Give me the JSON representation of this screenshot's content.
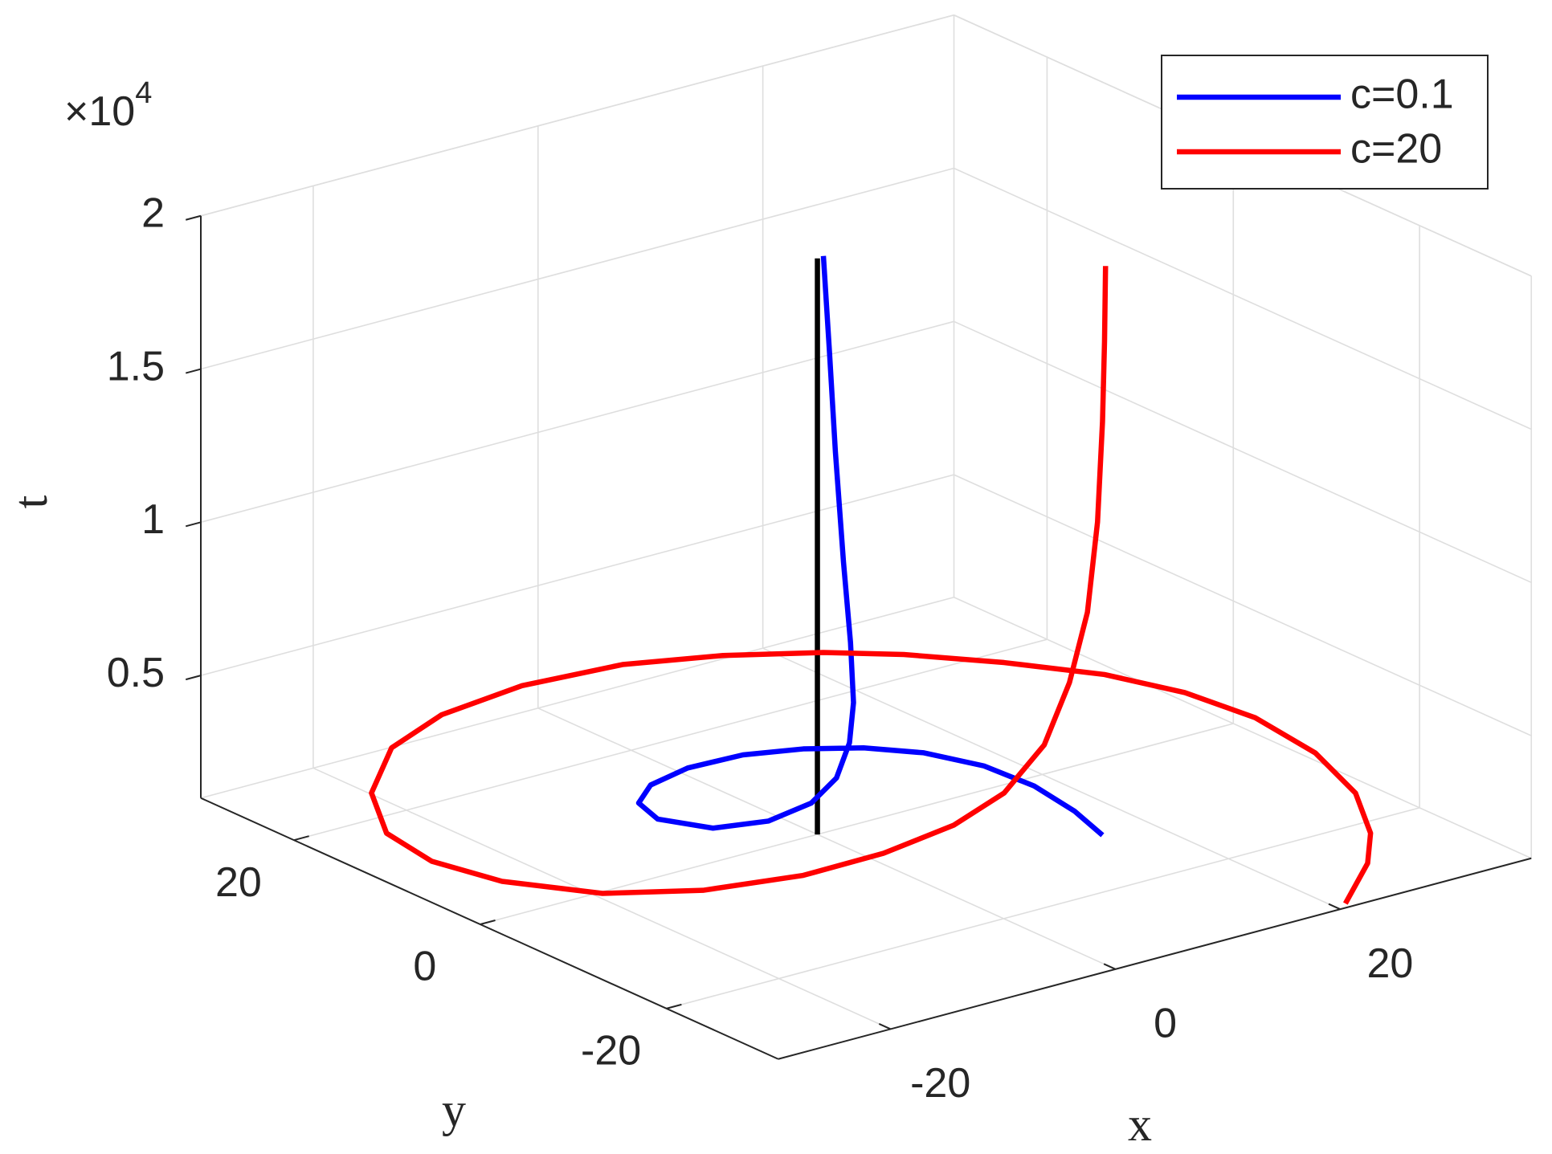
{
  "chart_data": {
    "type": "line3d",
    "xlabel": "x",
    "ylabel": "y",
    "zlabel": "t",
    "xlim": [
      -30,
      37
    ],
    "ylim": [
      -32,
      30
    ],
    "zlim": [
      1000,
      20000
    ],
    "xticks": [
      -20,
      0,
      20
    ],
    "yticks": [
      -20,
      0,
      20
    ],
    "zticks": [
      {
        "value": 5000,
        "label": "0.5"
      },
      {
        "value": 10000,
        "label": "1"
      },
      {
        "value": 15000,
        "label": "1.5"
      },
      {
        "value": 20000,
        "label": "2"
      }
    ],
    "zscale_base": "×10",
    "zscale_exponent": "4",
    "grid": true,
    "legend_loc": "upper right",
    "series": [
      {
        "color": "#000000",
        "x": [
          0,
          0
        ],
        "y": [
          0,
          0
        ],
        "t": [
          1000,
          19800
        ]
      },
      {
        "name": "c=0.1",
        "color": "#0000ff",
        "x": [
          15.86,
          17.05,
          17.67,
          17.12,
          15.15,
          12.16,
          8.43,
          4.09,
          -0.85,
          -5.26,
          -8.39,
          -9.54,
          -7.8,
          -4.06,
          0.36,
          3.46,
          3.44,
          3.17,
          2.48,
          1.79,
          1.16,
          0.92,
          -0.13
        ],
        "y": [
          -11.47,
          -7.02,
          -1.95,
          2.78,
          6.86,
          9.72,
          11.7,
          12.93,
          12.9,
          11.56,
          9.07,
          5.64,
          1.8,
          0.38,
          1.09,
          2.13,
          0.71,
          -0.05,
          -0.56,
          -0.64,
          -0.53,
          -0.18,
          -0.8
        ],
        "t": [
          1000,
          1060,
          1120,
          1180,
          1240,
          1300,
          1360,
          1420,
          1480,
          1540,
          1600,
          1660,
          1720,
          1780,
          1840,
          2212,
          3555,
          5000,
          7100,
          9800,
          13450,
          16700,
          20000
        ]
      },
      {
        "name": "c=20",
        "color": "#ff0000",
        "x": [
          21.0,
          27.07,
          30.81,
          34.78,
          37.35,
          38.19,
          37.21,
          34.8,
          30.51,
          25.74,
          21.34,
          15.2,
          8.3,
          -0.08,
          -8.33,
          -15.38,
          -22.25,
          -26.54,
          -27.64,
          -26.34,
          -22.36,
          -16.51,
          -9.2,
          -2.12,
          5.14,
          9.88,
          12.4,
          13.94,
          16.05,
          16.42,
          17.75,
          18.31,
          18.21
        ],
        "y": [
          -31.35,
          -26.41,
          -22.21,
          -15.8,
          -8.38,
          -0.91,
          5.46,
          11.18,
          16.78,
          21.8,
          25.12,
          28.49,
          30.95,
          31.62,
          30.29,
          27.16,
          21.03,
          14.23,
          8.05,
          2.07,
          -3.91,
          -7.64,
          -9.58,
          -9.66,
          -8.44,
          -8.12,
          -9.39,
          -10.24,
          -9.62,
          -10.26,
          -9.19,
          -8.73,
          -8.96
        ],
        "t": [
          1000,
          1040,
          1080,
          1120,
          1160,
          1200,
          1240,
          1280,
          1320,
          1360,
          1400,
          1440,
          1480,
          1520,
          1560,
          1600,
          1640,
          1680,
          1720,
          1760,
          1800,
          1840,
          1880,
          1920,
          1960,
          2500,
          4000,
          6000,
          8000,
          11000,
          14000,
          16500,
          19000
        ]
      }
    ]
  }
}
